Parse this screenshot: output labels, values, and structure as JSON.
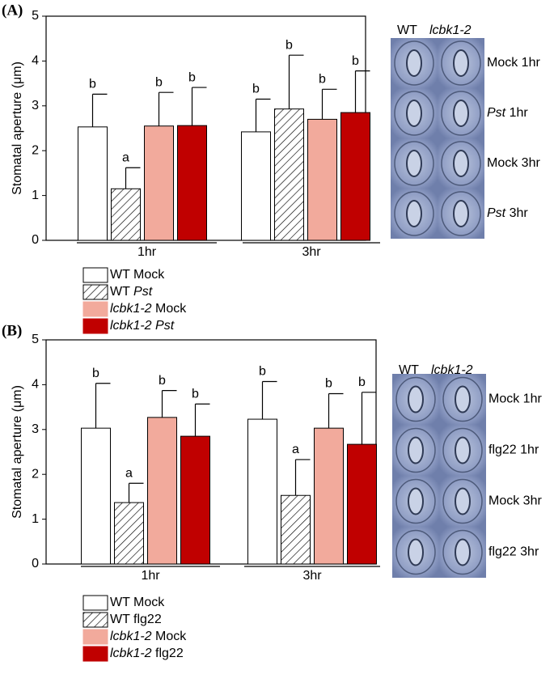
{
  "chart_data": [
    {
      "type": "bar",
      "title": "(A)",
      "ylabel": "Stomatal aperture (μm)",
      "categories": [
        "1hr",
        "3hr"
      ],
      "ylim": [
        0,
        5
      ],
      "yticks": [
        0,
        1,
        2,
        3,
        4,
        5
      ],
      "italic": [
        "Pst",
        "lcbk1-2"
      ],
      "series": [
        {
          "name": "WT Mock",
          "color": "#ffffff",
          "values": [
            2.53,
            2.42
          ],
          "errors": [
            0.73,
            0.73
          ],
          "letters": [
            "b",
            "b"
          ]
        },
        {
          "name": "WT Pst",
          "color": "#ffffff",
          "pattern": "hatch",
          "values": [
            1.15,
            2.93
          ],
          "errors": [
            0.47,
            1.2
          ],
          "letters": [
            "a",
            "b"
          ]
        },
        {
          "name": "lcbk1-2 Mock",
          "color": "#f2aa9c",
          "values": [
            2.55,
            2.7
          ],
          "errors": [
            0.75,
            0.67
          ],
          "letters": [
            "b",
            "b"
          ]
        },
        {
          "name": "lcbk1-2 Pst",
          "color": "#c00000",
          "values": [
            2.56,
            2.85
          ],
          "errors": [
            0.85,
            0.93
          ],
          "letters": [
            "b",
            "b"
          ]
        }
      ],
      "image_columns": [
        "WT",
        "lcbk1-2"
      ],
      "image_rows": [
        "Mock 1hr",
        "Pst 1hr",
        "Mock 3hr",
        "Pst 3hr"
      ]
    },
    {
      "type": "bar",
      "title": "(B)",
      "ylabel": "Stomatal aperture (μm)",
      "categories": [
        "1hr",
        "3hr"
      ],
      "ylim": [
        0,
        5
      ],
      "yticks": [
        0,
        1,
        2,
        3,
        4,
        5
      ],
      "italic": [
        "lcbk1-2"
      ],
      "series": [
        {
          "name": "WT Mock",
          "color": "#ffffff",
          "values": [
            3.03,
            3.23
          ],
          "errors": [
            1.0,
            0.84
          ],
          "letters": [
            "b",
            "b"
          ]
        },
        {
          "name": "WT flg22",
          "color": "#ffffff",
          "pattern": "hatch",
          "values": [
            1.37,
            1.53
          ],
          "errors": [
            0.43,
            0.8
          ],
          "letters": [
            "a",
            "a"
          ]
        },
        {
          "name": "lcbk1-2 Mock",
          "color": "#f2aa9c",
          "values": [
            3.27,
            3.03
          ],
          "errors": [
            0.6,
            0.77
          ],
          "letters": [
            "b",
            "b"
          ]
        },
        {
          "name": "lcbk1-2 flg22",
          "color": "#c00000",
          "values": [
            2.85,
            2.67
          ],
          "errors": [
            0.72,
            1.16
          ],
          "letters": [
            "b",
            "b"
          ]
        }
      ],
      "image_columns": [
        "WT",
        "lcbk1-2"
      ],
      "image_rows": [
        "Mock 1hr",
        "flg22 1hr",
        "Mock 3hr",
        "flg22 3hr"
      ]
    }
  ]
}
